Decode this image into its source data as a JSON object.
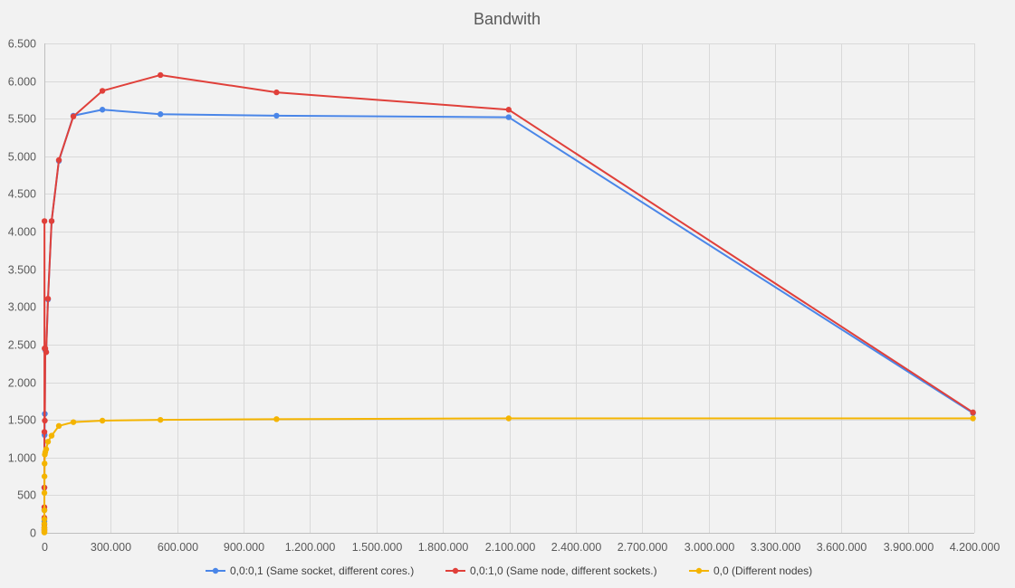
{
  "chart_data": {
    "type": "scatter",
    "title": "Bandwith",
    "xlabel": "",
    "ylabel": "",
    "xlim": [
      0,
      4200000
    ],
    "ylim": [
      0,
      6500
    ],
    "x_ticks": [
      0,
      300000,
      600000,
      900000,
      1200000,
      1500000,
      1800000,
      2100000,
      2400000,
      2700000,
      3000000,
      3300000,
      3600000,
      3900000,
      4200000
    ],
    "x_tick_labels": [
      "0",
      "300.000",
      "600.000",
      "900.000",
      "1.200.000",
      "1.500.000",
      "1.800.000",
      "2.100.000",
      "2.400.000",
      "2.700.000",
      "3.000.000",
      "3.300.000",
      "3.600.000",
      "3.900.000",
      "4.200.000"
    ],
    "y_ticks": [
      0,
      500,
      1000,
      1500,
      2000,
      2500,
      3000,
      3500,
      4000,
      4500,
      5000,
      5500,
      6000,
      6500
    ],
    "y_tick_labels": [
      "0",
      "500",
      "1.000",
      "1.500",
      "2.000",
      "2.500",
      "3.000",
      "3.500",
      "4.000",
      "4.500",
      "5.000",
      "5.500",
      "6.000",
      "6.500"
    ],
    "grid": true,
    "legend_position": "bottom",
    "lines_connected": true,
    "series": [
      {
        "name": "0,0:0,1 (Same socket, different cores.)",
        "color": "#4a86e8",
        "points": [
          [
            1,
            40
          ],
          [
            2,
            70
          ],
          [
            4,
            150
          ],
          [
            8,
            300
          ],
          [
            16,
            600
          ],
          [
            1024,
            1300
          ],
          [
            2048,
            1580
          ],
          [
            4096,
            2430
          ],
          [
            8192,
            2400
          ],
          [
            16384,
            3100
          ],
          [
            32768,
            4140
          ],
          [
            65536,
            4940
          ],
          [
            131072,
            5540
          ],
          [
            262144,
            5620
          ],
          [
            524288,
            5560
          ],
          [
            1048576,
            5540
          ],
          [
            2097152,
            5520
          ],
          [
            4194304,
            1590
          ]
        ]
      },
      {
        "name": "0,0:1,0 (Same node, different sockets.)",
        "color": "#e0403a",
        "points": [
          [
            1,
            30
          ],
          [
            2,
            60
          ],
          [
            4,
            110
          ],
          [
            8,
            200
          ],
          [
            16,
            340
          ],
          [
            64,
            600
          ],
          [
            256,
            1340
          ],
          [
            512,
            4140
          ],
          [
            1024,
            2450
          ],
          [
            2048,
            1490
          ],
          [
            4096,
            2450
          ],
          [
            8192,
            2400
          ],
          [
            16384,
            3110
          ],
          [
            32768,
            4140
          ],
          [
            65536,
            4950
          ],
          [
            131072,
            5530
          ],
          [
            262144,
            5870
          ],
          [
            524288,
            6080
          ],
          [
            1048576,
            5850
          ],
          [
            2097152,
            5620
          ],
          [
            4194304,
            1600
          ]
        ]
      },
      {
        "name": "0,0 (Different nodes)",
        "color": "#f4b400",
        "points": [
          [
            1,
            5
          ],
          [
            2,
            10
          ],
          [
            4,
            20
          ],
          [
            8,
            40
          ],
          [
            16,
            70
          ],
          [
            32,
            120
          ],
          [
            64,
            180
          ],
          [
            128,
            300
          ],
          [
            256,
            530
          ],
          [
            512,
            750
          ],
          [
            1024,
            920
          ],
          [
            2048,
            1040
          ],
          [
            4096,
            1070
          ],
          [
            8192,
            1110
          ],
          [
            16384,
            1210
          ],
          [
            32768,
            1290
          ],
          [
            65536,
            1420
          ],
          [
            131072,
            1470
          ],
          [
            262144,
            1490
          ],
          [
            524288,
            1500
          ],
          [
            1048576,
            1510
          ],
          [
            2097152,
            1520
          ],
          [
            4194304,
            1520
          ]
        ]
      }
    ]
  }
}
